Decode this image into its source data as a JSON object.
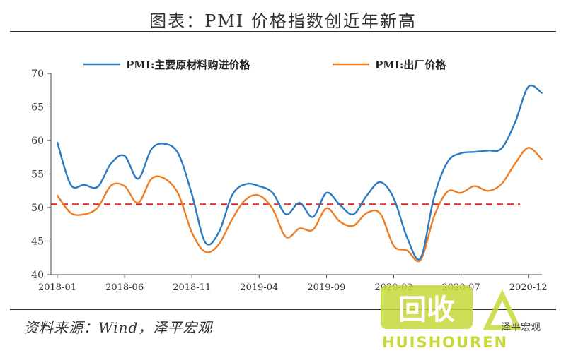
{
  "title": "图表：PMI 价格指数创近年新高",
  "source": "资料来源：Wind，泽平宏观",
  "watermark": {
    "logo_text": "回收",
    "brand_text": "HUISHOUREN",
    "account_text": "泽平宏观",
    "color": "#c7d83a"
  },
  "chart_data": {
    "type": "line",
    "x_tick_labels": [
      "2018-01",
      "2018-06",
      "2018-11",
      "2019-04",
      "2019-09",
      "2020-02",
      "2020-07",
      "2020-12"
    ],
    "ylim": [
      40,
      70
    ],
    "y_ticks": [
      40,
      45,
      50,
      55,
      60,
      65,
      70
    ],
    "reference_line": {
      "value": 50.5,
      "style": "dashed",
      "color": "#e8212a"
    },
    "legend_position": "top",
    "series": [
      {
        "name": "PMI:主要原材料购进价格",
        "color": "#2a7ac3",
        "values": [
          59.7,
          53.4,
          53.4,
          53.1,
          56.6,
          57.7,
          54.3,
          58.7,
          59.5,
          58.0,
          52.0,
          44.8,
          46.3,
          51.9,
          53.5,
          53.2,
          52.2,
          49.0,
          50.7,
          48.6,
          52.2,
          50.4,
          49.0,
          51.8,
          53.8,
          51.4,
          45.5,
          42.5,
          51.6,
          56.8,
          58.1,
          58.3,
          58.5,
          58.8,
          62.6,
          68.0,
          67.1
        ]
      },
      {
        "name": "PMI:出厂价格",
        "color": "#ee7d23",
        "values": [
          51.8,
          49.2,
          49.0,
          50.0,
          53.3,
          53.2,
          50.7,
          54.3,
          54.3,
          52.0,
          46.3,
          43.4,
          44.5,
          48.3,
          51.2,
          51.8,
          49.8,
          45.6,
          46.9,
          46.7,
          49.9,
          47.9,
          47.3,
          49.2,
          49.1,
          44.3,
          43.6,
          42.2,
          48.7,
          52.4,
          52.2,
          53.2,
          52.5,
          53.5,
          56.5,
          58.9,
          57.2
        ]
      }
    ]
  }
}
